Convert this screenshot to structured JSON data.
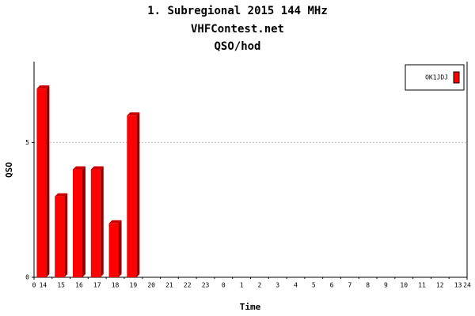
{
  "chart_data": {
    "type": "bar",
    "title": "1. Subregional 2015 144 MHz",
    "subtitle": "VHFContest.net",
    "subtitle2": "QSO/hod",
    "y_label": "QSO",
    "x_label": "Time",
    "categories": [
      "14",
      "15",
      "16",
      "17",
      "18",
      "19",
      "20",
      "21",
      "22",
      "23",
      "0",
      "1",
      "2",
      "3",
      "4",
      "5",
      "6",
      "7",
      "8",
      "9",
      "10",
      "11",
      "12",
      "13"
    ],
    "series": [
      {
        "name": "OK1JDJ",
        "color": "#ff0000",
        "values": [
          7,
          3,
          4,
          4,
          2,
          6,
          0,
          0,
          0,
          0,
          0,
          0,
          0,
          0,
          0,
          0,
          0,
          0,
          0,
          0,
          0,
          0,
          0,
          0
        ]
      }
    ],
    "ylim": [
      0,
      8
    ],
    "yticks": [
      0,
      5
    ],
    "xlim": [
      0,
      24
    ],
    "xticks": [
      0,
      24
    ],
    "grid": true,
    "legend": "top-right"
  }
}
